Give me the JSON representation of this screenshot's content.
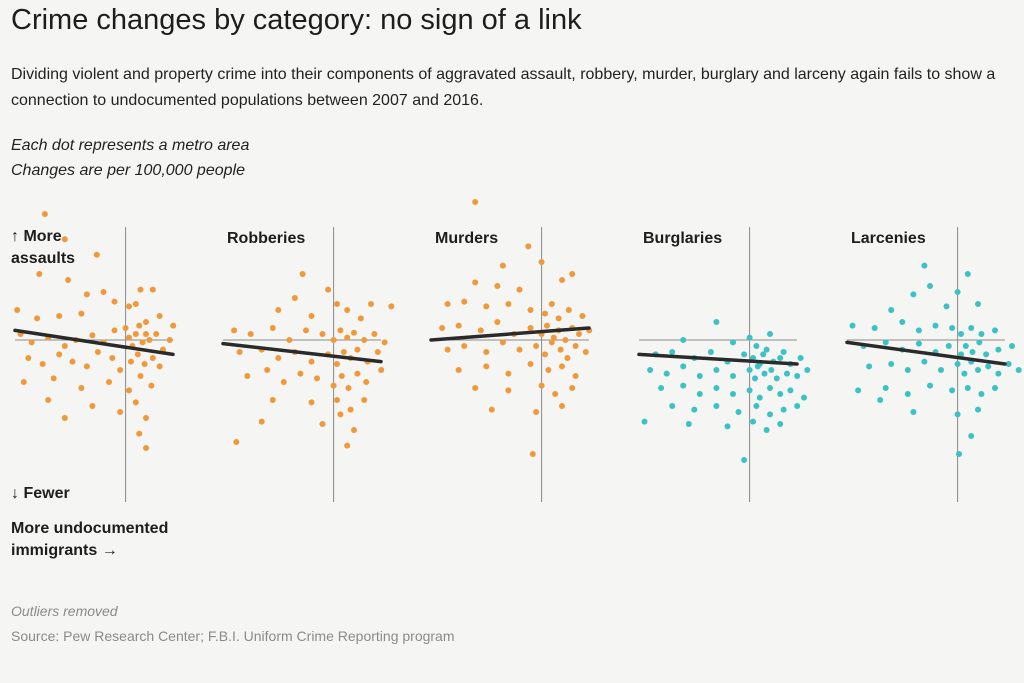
{
  "header": {
    "title": "Crime changes by category: no sign of a link",
    "subtitle": "Dividing violent and property crime into their components of aggravated assault, robbery, murder, burglary and larceny again fails to show a connection to undocumented populations between 2007 and 2016."
  },
  "notes": {
    "line1": "Each dot represents a metro area",
    "line2": "Changes are per 100,000 people"
  },
  "axis_labels": {
    "y_up": "↑ More",
    "y_up2": "assaults",
    "y_down": "↓ Fewer",
    "x_label1": "More undocumented",
    "x_label2": "immigrants →"
  },
  "footer": {
    "outliers": "Outliers removed",
    "source": "Source: Pew Research Center; F.B.I. Uniform Crime Reporting program"
  },
  "colors": {
    "orange": "#f0993a",
    "teal": "#3cc2c4",
    "trend": "#2a2a2a",
    "axis": "#8a8a8a"
  },
  "chart_data": [
    {
      "type": "scatter",
      "title": "",
      "color": "#f0993a",
      "trend": [
        [
          -1,
          0.08
        ],
        [
          1,
          -0.12
        ]
      ],
      "points": [
        [
          -0.73,
          1.05
        ],
        [
          -0.55,
          0.84
        ],
        [
          -0.26,
          0.71
        ],
        [
          -0.78,
          0.55
        ],
        [
          -0.52,
          0.5
        ],
        [
          -0.35,
          0.38
        ],
        [
          -0.2,
          0.4
        ],
        [
          0.22,
          0.42
        ],
        [
          0.4,
          0.42
        ],
        [
          -0.98,
          0.25
        ],
        [
          -0.8,
          0.18
        ],
        [
          -0.6,
          0.2
        ],
        [
          -0.4,
          0.22
        ],
        [
          -0.1,
          0.32
        ],
        [
          0.05,
          0.28
        ],
        [
          0.15,
          0.3
        ],
        [
          0.3,
          0.15
        ],
        [
          0.5,
          0.2
        ],
        [
          0.7,
          0.12
        ],
        [
          -0.95,
          0.05
        ],
        [
          -0.85,
          -0.02
        ],
        [
          -0.7,
          0.02
        ],
        [
          -0.55,
          -0.05
        ],
        [
          -0.45,
          0.0
        ],
        [
          -0.3,
          0.04
        ],
        [
          -0.2,
          -0.02
        ],
        [
          -0.1,
          0.08
        ],
        [
          0.0,
          0.1
        ],
        [
          0.05,
          0.02
        ],
        [
          0.1,
          -0.05
        ],
        [
          0.15,
          0.05
        ],
        [
          0.2,
          0.12
        ],
        [
          0.25,
          -0.02
        ],
        [
          0.3,
          0.05
        ],
        [
          0.35,
          0.0
        ],
        [
          0.45,
          0.05
        ],
        [
          0.55,
          -0.08
        ],
        [
          0.65,
          0.0
        ],
        [
          -0.88,
          -0.15
        ],
        [
          -0.75,
          -0.2
        ],
        [
          -0.6,
          -0.12
        ],
        [
          -0.48,
          -0.18
        ],
        [
          -0.35,
          -0.22
        ],
        [
          -0.25,
          -0.1
        ],
        [
          -0.12,
          -0.15
        ],
        [
          -0.05,
          -0.25
        ],
        [
          0.08,
          -0.18
        ],
        [
          0.18,
          -0.12
        ],
        [
          0.28,
          -0.2
        ],
        [
          0.4,
          -0.15
        ],
        [
          0.5,
          -0.22
        ],
        [
          -0.92,
          -0.35
        ],
        [
          -0.65,
          -0.32
        ],
        [
          -0.4,
          -0.4
        ],
        [
          -0.15,
          -0.35
        ],
        [
          0.05,
          -0.42
        ],
        [
          0.22,
          -0.3
        ],
        [
          0.38,
          -0.38
        ],
        [
          -0.7,
          -0.5
        ],
        [
          -0.3,
          -0.55
        ],
        [
          -0.05,
          -0.6
        ],
        [
          0.15,
          -0.52
        ],
        [
          0.3,
          -0.65
        ],
        [
          -0.55,
          -0.65
        ],
        [
          0.2,
          -0.78
        ],
        [
          0.3,
          -0.9
        ]
      ]
    },
    {
      "type": "scatter",
      "title": "Robberies",
      "color": "#f0993a",
      "trend": [
        [
          -1,
          -0.03
        ],
        [
          1,
          -0.18
        ]
      ],
      "points": [
        [
          -0.28,
          0.55
        ],
        [
          -0.05,
          0.42
        ],
        [
          0.05,
          0.3
        ],
        [
          -0.35,
          0.35
        ],
        [
          -0.5,
          0.25
        ],
        [
          0.55,
          0.3
        ],
        [
          -0.2,
          0.2
        ],
        [
          0.2,
          0.25
        ],
        [
          0.4,
          0.18
        ],
        [
          0.85,
          0.28
        ],
        [
          -0.9,
          0.08
        ],
        [
          -0.75,
          0.05
        ],
        [
          -0.55,
          0.1
        ],
        [
          -0.4,
          0.0
        ],
        [
          -0.25,
          0.08
        ],
        [
          -0.1,
          0.05
        ],
        [
          0.0,
          0.0
        ],
        [
          0.1,
          0.08
        ],
        [
          0.2,
          0.02
        ],
        [
          0.3,
          0.06
        ],
        [
          0.45,
          0.0
        ],
        [
          0.6,
          0.05
        ],
        [
          0.75,
          -0.02
        ],
        [
          -0.85,
          -0.1
        ],
        [
          -0.65,
          -0.08
        ],
        [
          -0.5,
          -0.15
        ],
        [
          -0.35,
          -0.1
        ],
        [
          -0.2,
          -0.18
        ],
        [
          -0.05,
          -0.12
        ],
        [
          0.05,
          -0.2
        ],
        [
          0.15,
          -0.1
        ],
        [
          0.25,
          -0.15
        ],
        [
          0.35,
          -0.08
        ],
        [
          0.5,
          -0.18
        ],
        [
          0.65,
          -0.1
        ],
        [
          -0.78,
          -0.3
        ],
        [
          -0.6,
          -0.25
        ],
        [
          -0.45,
          -0.35
        ],
        [
          -0.3,
          -0.28
        ],
        [
          -0.15,
          -0.32
        ],
        [
          0.0,
          -0.38
        ],
        [
          0.12,
          -0.3
        ],
        [
          0.22,
          -0.4
        ],
        [
          0.35,
          -0.28
        ],
        [
          0.48,
          -0.35
        ],
        [
          0.7,
          -0.25
        ],
        [
          -0.55,
          -0.5
        ],
        [
          -0.2,
          -0.52
        ],
        [
          0.05,
          -0.5
        ],
        [
          0.25,
          -0.58
        ],
        [
          0.45,
          -0.5
        ],
        [
          -0.65,
          -0.68
        ],
        [
          -0.1,
          -0.7
        ],
        [
          0.1,
          -0.62
        ],
        [
          0.3,
          -0.75
        ],
        [
          -0.88,
          -0.85
        ],
        [
          0.2,
          -0.88
        ]
      ]
    },
    {
      "type": "scatter",
      "title": "Murders",
      "color": "#f0993a",
      "trend": [
        [
          -1,
          0.0
        ],
        [
          1,
          0.1
        ]
      ],
      "points": [
        [
          -0.6,
          1.15
        ],
        [
          -0.12,
          0.78
        ],
        [
          -0.35,
          0.62
        ],
        [
          0.0,
          0.65
        ],
        [
          -0.6,
          0.48
        ],
        [
          -0.4,
          0.45
        ],
        [
          -0.2,
          0.42
        ],
        [
          0.3,
          0.5
        ],
        [
          0.45,
          0.55
        ],
        [
          -0.85,
          0.3
        ],
        [
          -0.7,
          0.32
        ],
        [
          -0.5,
          0.28
        ],
        [
          -0.3,
          0.3
        ],
        [
          -0.1,
          0.25
        ],
        [
          0.05,
          0.22
        ],
        [
          0.15,
          0.3
        ],
        [
          0.25,
          0.18
        ],
        [
          0.4,
          0.25
        ],
        [
          0.6,
          0.2
        ],
        [
          -0.9,
          0.1
        ],
        [
          -0.75,
          0.12
        ],
        [
          -0.55,
          0.08
        ],
        [
          -0.4,
          0.15
        ],
        [
          -0.25,
          0.05
        ],
        [
          -0.1,
          0.1
        ],
        [
          0.0,
          0.05
        ],
        [
          0.08,
          0.12
        ],
        [
          0.18,
          0.02
        ],
        [
          0.25,
          0.08
        ],
        [
          0.35,
          0.0
        ],
        [
          0.45,
          0.1
        ],
        [
          0.55,
          0.05
        ],
        [
          0.7,
          0.08
        ],
        [
          -0.85,
          -0.08
        ],
        [
          -0.7,
          -0.05
        ],
        [
          -0.5,
          -0.1
        ],
        [
          -0.35,
          -0.02
        ],
        [
          -0.2,
          -0.08
        ],
        [
          -0.05,
          -0.05
        ],
        [
          0.05,
          -0.12
        ],
        [
          0.15,
          -0.02
        ],
        [
          0.28,
          -0.08
        ],
        [
          0.38,
          -0.15
        ],
        [
          0.5,
          -0.05
        ],
        [
          0.65,
          -0.1
        ],
        [
          -0.75,
          -0.25
        ],
        [
          -0.5,
          -0.22
        ],
        [
          -0.3,
          -0.28
        ],
        [
          -0.1,
          -0.2
        ],
        [
          0.1,
          -0.25
        ],
        [
          0.3,
          -0.22
        ],
        [
          0.5,
          -0.3
        ],
        [
          -0.6,
          -0.4
        ],
        [
          -0.3,
          -0.42
        ],
        [
          0.0,
          -0.38
        ],
        [
          0.2,
          -0.45
        ],
        [
          0.45,
          -0.4
        ],
        [
          -0.45,
          -0.58
        ],
        [
          -0.05,
          -0.6
        ],
        [
          0.3,
          -0.55
        ],
        [
          -0.08,
          -0.95
        ]
      ]
    },
    {
      "type": "scatter",
      "title": "Burglaries",
      "color": "#3cc2c4",
      "trend": [
        [
          -1,
          -0.12
        ],
        [
          1,
          -0.2
        ]
      ],
      "points": [
        [
          -0.3,
          0.15
        ],
        [
          0.3,
          0.05
        ],
        [
          -0.6,
          0.0
        ],
        [
          0.0,
          0.02
        ],
        [
          -0.15,
          -0.02
        ],
        [
          0.1,
          -0.05
        ],
        [
          0.25,
          -0.08
        ],
        [
          0.5,
          -0.1
        ],
        [
          -0.85,
          -0.12
        ],
        [
          -0.7,
          -0.1
        ],
        [
          -0.5,
          -0.15
        ],
        [
          -0.35,
          -0.1
        ],
        [
          -0.2,
          -0.18
        ],
        [
          -0.05,
          -0.12
        ],
        [
          0.05,
          -0.15
        ],
        [
          0.15,
          -0.2
        ],
        [
          0.2,
          -0.12
        ],
        [
          0.35,
          -0.18
        ],
        [
          0.45,
          -0.15
        ],
        [
          0.6,
          -0.2
        ],
        [
          0.75,
          -0.15
        ],
        [
          -0.9,
          -0.25
        ],
        [
          -0.75,
          -0.28
        ],
        [
          -0.6,
          -0.22
        ],
        [
          -0.45,
          -0.3
        ],
        [
          -0.3,
          -0.25
        ],
        [
          -0.15,
          -0.3
        ],
        [
          0.0,
          -0.25
        ],
        [
          0.08,
          -0.32
        ],
        [
          0.12,
          -0.22
        ],
        [
          0.22,
          -0.28
        ],
        [
          0.32,
          -0.25
        ],
        [
          0.4,
          -0.32
        ],
        [
          0.55,
          -0.28
        ],
        [
          0.7,
          -0.3
        ],
        [
          0.85,
          -0.25
        ],
        [
          -0.8,
          -0.4
        ],
        [
          -0.6,
          -0.38
        ],
        [
          -0.45,
          -0.45
        ],
        [
          -0.3,
          -0.4
        ],
        [
          -0.15,
          -0.45
        ],
        [
          0.0,
          -0.42
        ],
        [
          0.15,
          -0.48
        ],
        [
          0.3,
          -0.4
        ],
        [
          0.45,
          -0.45
        ],
        [
          0.6,
          -0.42
        ],
        [
          0.8,
          -0.48
        ],
        [
          -0.7,
          -0.55
        ],
        [
          -0.5,
          -0.58
        ],
        [
          -0.3,
          -0.55
        ],
        [
          -0.1,
          -0.6
        ],
        [
          0.1,
          -0.55
        ],
        [
          0.3,
          -0.62
        ],
        [
          0.5,
          -0.58
        ],
        [
          0.7,
          -0.55
        ],
        [
          -0.95,
          -0.68
        ],
        [
          -0.55,
          -0.7
        ],
        [
          -0.2,
          -0.72
        ],
        [
          0.05,
          -0.68
        ],
        [
          0.25,
          -0.75
        ],
        [
          0.45,
          -0.7
        ],
        [
          -0.05,
          -1.0
        ]
      ]
    },
    {
      "type": "scatter",
      "title": "Larcenies",
      "color": "#3cc2c4",
      "trend": [
        [
          -1,
          -0.02
        ],
        [
          1,
          -0.2
        ]
      ],
      "points": [
        [
          -0.3,
          0.62
        ],
        [
          0.15,
          0.55
        ],
        [
          -0.25,
          0.45
        ],
        [
          -0.4,
          0.38
        ],
        [
          0.0,
          0.4
        ],
        [
          -0.6,
          0.25
        ],
        [
          -0.1,
          0.28
        ],
        [
          0.3,
          0.3
        ],
        [
          -0.95,
          0.12
        ],
        [
          -0.75,
          0.1
        ],
        [
          -0.5,
          0.15
        ],
        [
          -0.35,
          0.08
        ],
        [
          -0.2,
          0.12
        ],
        [
          -0.05,
          0.1
        ],
        [
          0.05,
          0.05
        ],
        [
          0.2,
          0.1
        ],
        [
          0.35,
          0.05
        ],
        [
          0.55,
          0.08
        ],
        [
          -0.85,
          -0.05
        ],
        [
          -0.65,
          -0.02
        ],
        [
          -0.5,
          -0.08
        ],
        [
          -0.35,
          -0.03
        ],
        [
          -0.2,
          -0.1
        ],
        [
          -0.08,
          -0.05
        ],
        [
          0.05,
          -0.12
        ],
        [
          0.12,
          -0.05
        ],
        [
          0.22,
          -0.1
        ],
        [
          0.32,
          -0.02
        ],
        [
          0.42,
          -0.12
        ],
        [
          0.6,
          -0.08
        ],
        [
          0.8,
          -0.05
        ],
        [
          -0.8,
          -0.22
        ],
        [
          -0.6,
          -0.2
        ],
        [
          -0.45,
          -0.25
        ],
        [
          -0.3,
          -0.18
        ],
        [
          -0.15,
          -0.25
        ],
        [
          0.0,
          -0.2
        ],
        [
          0.1,
          -0.28
        ],
        [
          0.2,
          -0.18
        ],
        [
          0.3,
          -0.25
        ],
        [
          0.45,
          -0.22
        ],
        [
          0.6,
          -0.28
        ],
        [
          0.75,
          -0.2
        ],
        [
          0.9,
          -0.25
        ],
        [
          -0.9,
          -0.42
        ],
        [
          -0.65,
          -0.4
        ],
        [
          -0.45,
          -0.45
        ],
        [
          -0.25,
          -0.38
        ],
        [
          -0.05,
          -0.42
        ],
        [
          0.15,
          -0.4
        ],
        [
          0.35,
          -0.45
        ],
        [
          0.55,
          -0.4
        ],
        [
          -0.4,
          -0.6
        ],
        [
          0.0,
          -0.62
        ],
        [
          0.3,
          -0.58
        ],
        [
          -0.7,
          -0.5
        ],
        [
          0.2,
          -0.8
        ],
        [
          0.02,
          -0.95
        ]
      ]
    }
  ]
}
